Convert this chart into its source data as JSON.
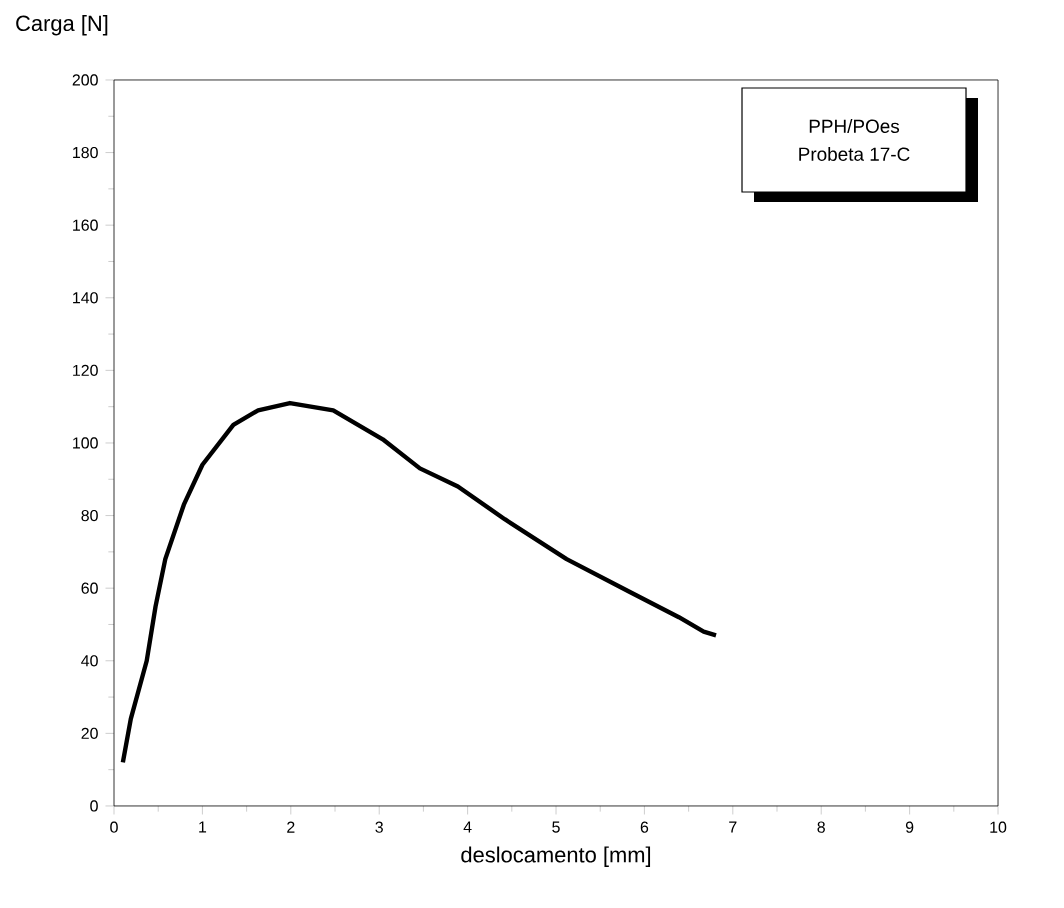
{
  "chart_data": {
    "type": "line",
    "xlabel": "deslocamento [mm]",
    "ylabel": "Carga [N]",
    "annotations": [
      "PPH/POes",
      "Probeta 17-C"
    ],
    "series": [
      {
        "color": "#000000",
        "x": [
          0.1,
          0.19,
          0.37,
          0.47,
          0.58,
          0.79,
          1.0,
          1.35,
          1.63,
          1.99,
          2.48,
          3.04,
          3.46,
          3.89,
          4.42,
          5.12,
          5.83,
          6.39,
          6.67,
          6.81
        ],
        "values": [
          12,
          24,
          40,
          55,
          68,
          83,
          94,
          105,
          109,
          111,
          109,
          101,
          93,
          88,
          79,
          68,
          59,
          52,
          48,
          47
        ]
      }
    ],
    "xlim": [
      0,
      10
    ],
    "ylim": [
      0,
      200
    ],
    "xticks": [
      0,
      1,
      2,
      3,
      4,
      5,
      6,
      7,
      8,
      9,
      10
    ],
    "yticks": [
      0,
      20,
      40,
      60,
      80,
      100,
      120,
      140,
      160,
      180,
      200
    ],
    "grid": false
  }
}
